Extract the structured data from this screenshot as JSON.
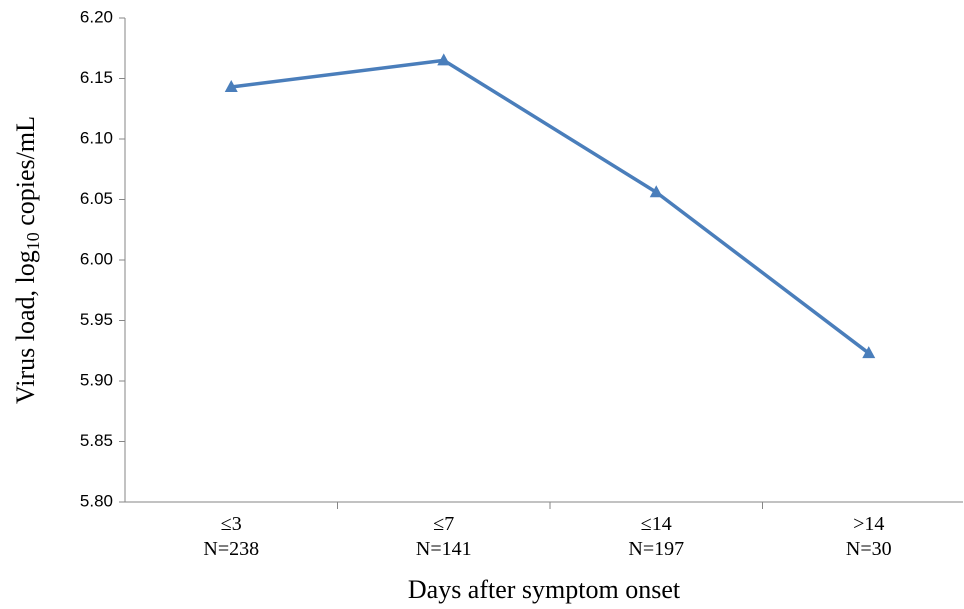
{
  "chart_data": {
    "type": "line",
    "categories": [
      [
        "≤3",
        "N=238"
      ],
      [
        "≤7",
        "N=141"
      ],
      [
        "≤14",
        "N=197"
      ],
      [
        ">14",
        "N=30"
      ]
    ],
    "series": [
      {
        "name": "Virus load",
        "color": "#4a7ebb",
        "values": [
          6.143,
          6.165,
          6.056,
          5.923
        ]
      }
    ],
    "ylim": [
      5.8,
      6.2
    ],
    "yticks": [
      {
        "value": 5.8,
        "label": "5.80"
      },
      {
        "value": 5.85,
        "label": "5.85"
      },
      {
        "value": 5.9,
        "label": "5.90"
      },
      {
        "value": 5.95,
        "label": "5.95"
      },
      {
        "value": 6.0,
        "label": "6.00"
      },
      {
        "value": 6.05,
        "label": "6.05"
      },
      {
        "value": 6.1,
        "label": "6.10"
      },
      {
        "value": 6.15,
        "label": "6.15"
      },
      {
        "value": 6.2,
        "label": "6.20"
      }
    ],
    "xlabel": "Days after symptom onset",
    "ylabel": [
      "Virus load, log",
      "10",
      " copies/mL"
    ],
    "grid": false
  }
}
